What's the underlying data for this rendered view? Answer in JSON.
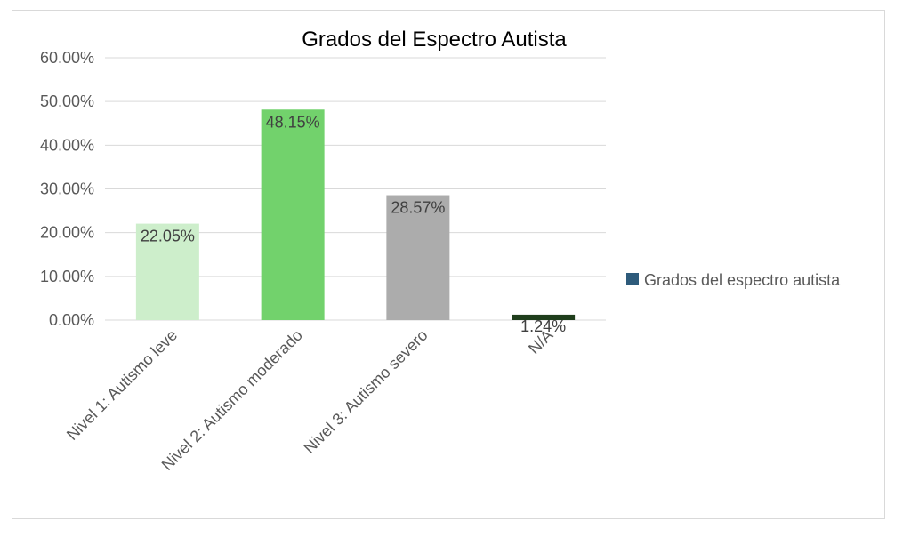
{
  "chart_data": {
    "type": "bar",
    "title": "Grados del Espectro Autista",
    "xlabel": "",
    "ylabel": "",
    "categories": [
      "Nivel 1: Autismo leve",
      "Nivel 2: Autismo moderado",
      "Nivel 3: Autismo severo",
      "N/A"
    ],
    "series": [
      {
        "name": "Grados del espectro autista",
        "values": [
          22.05,
          48.15,
          28.57,
          1.24
        ],
        "legend_color": "#2e5b7b"
      }
    ],
    "data_labels": [
      "22.05%",
      "48.15%",
      "28.57%",
      "1.24%"
    ],
    "bar_colors": [
      "#cdeecb",
      "#72d26c",
      "#acacac",
      "#1f3e1c"
    ],
    "ylim": [
      0,
      60
    ],
    "yticks": [
      "0.00%",
      "10.00%",
      "20.00%",
      "30.00%",
      "40.00%",
      "50.00%",
      "60.00%"
    ],
    "grid": true,
    "legend_position": "right"
  }
}
